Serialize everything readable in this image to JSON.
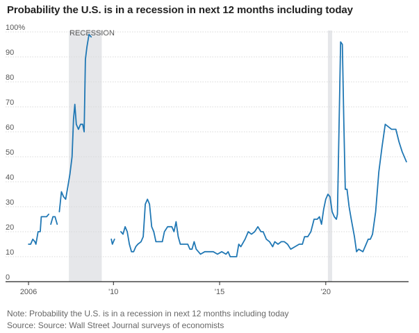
{
  "title": "Probability the U.S. is in a recession in next 12 months including today",
  "note": "Note: Probability the U.S. is in a recession in next 12 months including today",
  "source": "Source: Source: Wall Street Journal surveys of economists",
  "colors": {
    "line": "#1f77b4",
    "recession": "#e6e7ea",
    "grid": "#d8d8d8",
    "axis": "#222222",
    "label": "#555555"
  },
  "chart_data": {
    "type": "line",
    "title": "Probability the U.S. is in a recession in next 12 months including today",
    "xlabel": "",
    "ylabel": "",
    "xlim": [
      2005.9,
      2023.9
    ],
    "ylim": [
      0,
      100
    ],
    "y_ticks": [
      0,
      10,
      20,
      30,
      40,
      50,
      60,
      70,
      80,
      90,
      100
    ],
    "y_tick_labels": [
      "0",
      "10",
      "20",
      "30",
      "40",
      "50",
      "60",
      "70",
      "80",
      "90",
      "100%"
    ],
    "x_ticks": [
      2006,
      2010,
      2015,
      2020
    ],
    "x_tick_labels": [
      "2006",
      "'10",
      "'15",
      "'20"
    ],
    "grid": true,
    "recessions": [
      {
        "label": "RECESSION",
        "start": 2007.9,
        "end": 2009.45
      },
      {
        "label": "",
        "start": 2020.1,
        "end": 2020.3
      }
    ],
    "series": [
      {
        "segments": [
          [
            [
              2006.0,
              15
            ],
            [
              2006.1,
              15
            ],
            [
              2006.2,
              17
            ],
            [
              2006.3,
              16
            ],
            [
              2006.35,
              15
            ],
            [
              2006.45,
              20
            ],
            [
              2006.55,
              20
            ],
            [
              2006.6,
              26
            ],
            [
              2006.7,
              26
            ],
            [
              2006.85,
              26
            ],
            [
              2006.95,
              27
            ]
          ],
          [
            [
              2007.05,
              23
            ],
            [
              2007.15,
              26
            ],
            [
              2007.25,
              26
            ],
            [
              2007.35,
              23
            ]
          ],
          [
            [
              2007.45,
              28
            ],
            [
              2007.55,
              36
            ],
            [
              2007.65,
              34
            ],
            [
              2007.75,
              33
            ],
            [
              2007.85,
              38
            ],
            [
              2007.95,
              43
            ],
            [
              2008.05,
              50
            ],
            [
              2008.12,
              65
            ],
            [
              2008.18,
              71
            ],
            [
              2008.25,
              63
            ],
            [
              2008.35,
              61
            ],
            [
              2008.45,
              63
            ],
            [
              2008.55,
              63
            ],
            [
              2008.62,
              60
            ],
            [
              2008.68,
              89
            ],
            [
              2008.75,
              94
            ],
            [
              2008.85,
              99
            ],
            [
              2008.95,
              98
            ]
          ],
          [
            [
              2009.9,
              17
            ],
            [
              2009.95,
              15
            ],
            [
              2010.05,
              17
            ]
          ],
          [
            [
              2010.35,
              20
            ],
            [
              2010.45,
              19
            ],
            [
              2010.55,
              22
            ],
            [
              2010.65,
              20
            ],
            [
              2010.75,
              15
            ],
            [
              2010.85,
              12
            ],
            [
              2010.95,
              12
            ],
            [
              2011.05,
              14
            ],
            [
              2011.15,
              15
            ],
            [
              2011.3,
              16
            ],
            [
              2011.4,
              18
            ],
            [
              2011.5,
              31
            ],
            [
              2011.6,
              33
            ],
            [
              2011.7,
              31
            ],
            [
              2011.8,
              22
            ],
            [
              2011.9,
              20
            ],
            [
              2012.0,
              16
            ],
            [
              2012.1,
              16
            ],
            [
              2012.3,
              16
            ],
            [
              2012.4,
              20
            ],
            [
              2012.55,
              22
            ],
            [
              2012.75,
              22
            ],
            [
              2012.85,
              20
            ],
            [
              2012.95,
              24
            ],
            [
              2013.05,
              18
            ],
            [
              2013.15,
              15
            ],
            [
              2013.35,
              15
            ],
            [
              2013.5,
              15
            ],
            [
              2013.6,
              13
            ],
            [
              2013.7,
              13
            ],
            [
              2013.8,
              16
            ],
            [
              2013.9,
              13
            ],
            [
              2014.0,
              12
            ],
            [
              2014.1,
              11
            ],
            [
              2014.3,
              12
            ],
            [
              2014.5,
              12
            ],
            [
              2014.7,
              12
            ],
            [
              2014.9,
              11
            ],
            [
              2015.1,
              12
            ],
            [
              2015.3,
              11
            ],
            [
              2015.4,
              12
            ],
            [
              2015.5,
              10
            ],
            [
              2015.6,
              10
            ],
            [
              2015.8,
              10
            ],
            [
              2015.9,
              15
            ],
            [
              2016.0,
              14
            ],
            [
              2016.2,
              17
            ],
            [
              2016.35,
              20
            ],
            [
              2016.5,
              19
            ],
            [
              2016.65,
              20
            ],
            [
              2016.8,
              22
            ],
            [
              2016.95,
              20
            ],
            [
              2017.05,
              20
            ],
            [
              2017.2,
              17
            ],
            [
              2017.35,
              16
            ],
            [
              2017.5,
              14
            ],
            [
              2017.6,
              16
            ],
            [
              2017.75,
              15
            ],
            [
              2017.9,
              16
            ],
            [
              2018.05,
              16
            ],
            [
              2018.2,
              15
            ],
            [
              2018.35,
              13
            ],
            [
              2018.55,
              14
            ],
            [
              2018.75,
              15
            ],
            [
              2018.9,
              15
            ],
            [
              2019.0,
              18
            ],
            [
              2019.15,
              18
            ],
            [
              2019.3,
              20
            ],
            [
              2019.45,
              25
            ],
            [
              2019.6,
              25
            ],
            [
              2019.7,
              26
            ],
            [
              2019.8,
              23
            ],
            [
              2019.9,
              29
            ],
            [
              2020.0,
              33
            ],
            [
              2020.1,
              35
            ],
            [
              2020.2,
              34
            ],
            [
              2020.3,
              28
            ],
            [
              2020.4,
              26
            ],
            [
              2020.5,
              25
            ],
            [
              2020.55,
              27
            ],
            [
              2020.62,
              60
            ],
            [
              2020.7,
              96
            ],
            [
              2020.78,
              95
            ],
            [
              2020.85,
              64
            ],
            [
              2020.92,
              37
            ],
            [
              2021.0,
              37
            ],
            [
              2021.1,
              30
            ],
            [
              2021.2,
              25
            ],
            [
              2021.35,
              18
            ],
            [
              2021.45,
              12
            ],
            [
              2021.55,
              13
            ],
            [
              2021.75,
              12
            ],
            [
              2021.9,
              15
            ],
            [
              2022.0,
              17
            ],
            [
              2022.1,
              17
            ],
            [
              2022.2,
              19
            ],
            [
              2022.35,
              28
            ],
            [
              2022.5,
              44
            ],
            [
              2022.65,
              54
            ],
            [
              2022.8,
              63
            ],
            [
              2022.95,
              62
            ],
            [
              2023.1,
              61
            ],
            [
              2023.3,
              61
            ],
            [
              2023.45,
              56
            ],
            [
              2023.6,
              52
            ],
            [
              2023.8,
              48
            ]
          ]
        ]
      }
    ]
  }
}
